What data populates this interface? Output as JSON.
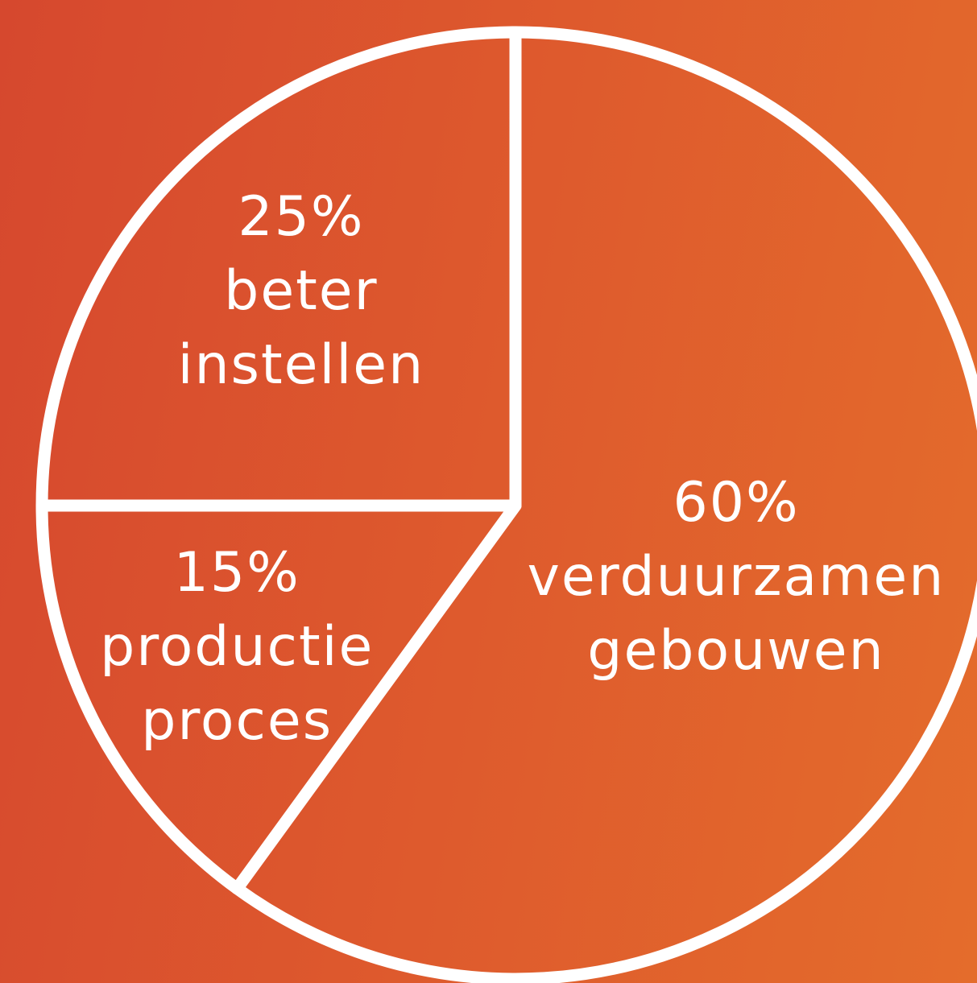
{
  "chart_data": {
    "type": "pie",
    "categories": [
      "verduurzamen gebouwen",
      "productie proces",
      "beter instellen"
    ],
    "values": [
      60,
      15,
      25
    ],
    "value_labels": [
      "60%",
      "15%",
      "25%"
    ]
  }
}
